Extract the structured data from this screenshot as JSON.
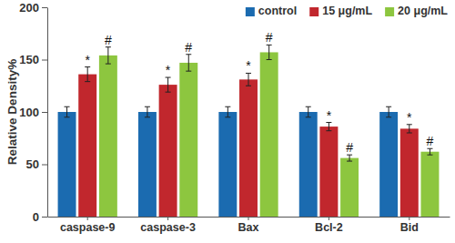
{
  "chart_data": {
    "type": "bar",
    "y_label": "Relative Density%",
    "categories": [
      "caspase-9",
      "caspase-3",
      "Bax",
      "Bcl-2",
      "Bid"
    ],
    "series": [
      {
        "name": "control",
        "color": "#1b6bb0",
        "values": [
          100,
          100,
          100,
          100,
          100
        ],
        "errors": [
          5,
          5,
          5,
          5,
          5
        ]
      },
      {
        "name": "15 μg/mL",
        "color": "#c1272d",
        "values": [
          136,
          126,
          131,
          86,
          84
        ],
        "errors": [
          7,
          7,
          6,
          4,
          4
        ],
        "annotations": [
          "*",
          "*",
          "*",
          "*",
          "*"
        ]
      },
      {
        "name": "20 μg/mL",
        "color": "#8dc63f",
        "values": [
          154,
          147,
          157,
          56,
          62
        ],
        "errors": [
          8,
          8,
          7,
          3,
          3
        ],
        "annotations": [
          "#",
          "#",
          "#",
          "#",
          "#"
        ]
      }
    ],
    "ylim": [
      0,
      200
    ],
    "yticks": [
      0,
      50,
      100,
      150,
      200
    ],
    "grid": false,
    "legend": "upper right"
  }
}
